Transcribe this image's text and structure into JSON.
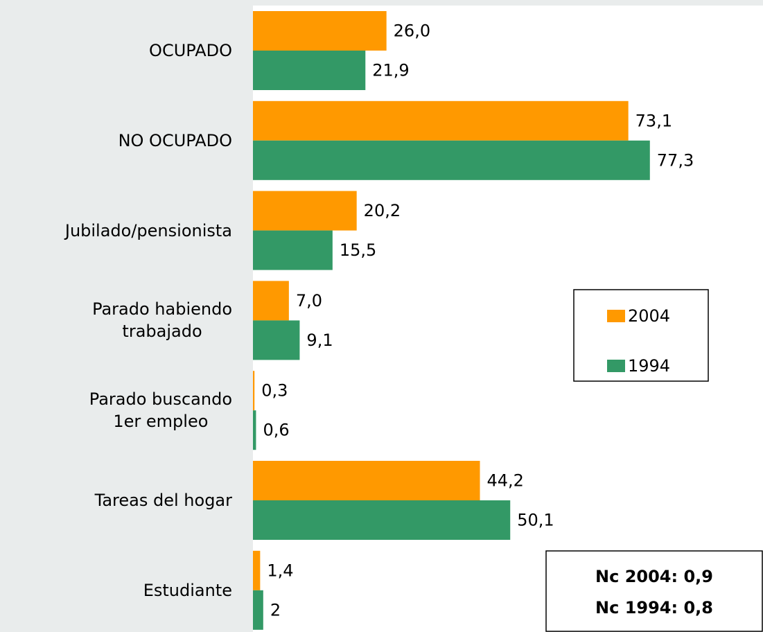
{
  "chart_data": {
    "type": "bar",
    "orientation": "horizontal",
    "categories": [
      "OCUPADO",
      "NO OCUPADO",
      "Jubilado/pensionista",
      "Parado habiendo\ntrabajado",
      "Parado buscando\n1er empleo",
      "Tareas del hogar",
      "Estudiante"
    ],
    "series": [
      {
        "name": "2004",
        "color": "#ff9900",
        "values": [
          26.0,
          73.1,
          20.2,
          7.0,
          0.3,
          44.2,
          1.4
        ],
        "value_labels": [
          "26,0",
          "73,1",
          "20,2",
          "7,0",
          "0,3",
          "44,2",
          "1,4"
        ]
      },
      {
        "name": "1994",
        "color": "#339966",
        "values": [
          21.9,
          77.3,
          15.5,
          9.1,
          0.6,
          50.1,
          2
        ],
        "value_labels": [
          "21,9",
          "77,3",
          "15,5",
          "9,1",
          "0,6",
          "50,1",
          "2"
        ]
      }
    ],
    "xlim": [
      0,
      100
    ],
    "notes": [
      "Nc 2004: 0,9",
      "Nc 1994: 0,8"
    ]
  }
}
